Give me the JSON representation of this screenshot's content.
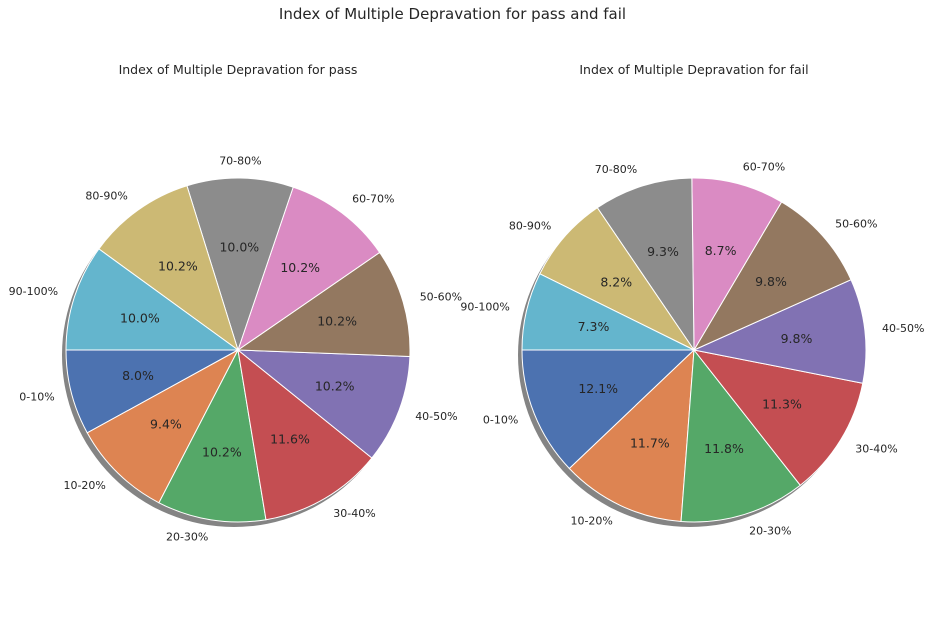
{
  "suptitle": "Index of Multiple Depravation for pass and fail",
  "colors": [
    "#4c72b0",
    "#dd8452",
    "#55a868",
    "#c44e52",
    "#8172b3",
    "#937860",
    "#da8bc3",
    "#8c8c8c",
    "#ccb974",
    "#64b5cd"
  ],
  "chart_data": [
    {
      "type": "pie",
      "title": "Index of Multiple Depravation for pass",
      "categories": [
        "0-10%",
        "10-20%",
        "20-30%",
        "30-40%",
        "40-50%",
        "50-60%",
        "60-70%",
        "70-80%",
        "80-90%",
        "90-100%"
      ],
      "values": [
        8.0,
        9.4,
        10.2,
        11.6,
        10.2,
        10.2,
        10.2,
        10.0,
        10.2,
        10.0
      ],
      "value_labels": [
        "8.0%",
        "9.4%",
        "10.2%",
        "11.6%",
        "10.2%",
        "10.2%",
        "10.2%",
        "10.0%",
        "10.2%",
        "10.0%"
      ],
      "start_angle_deg": 180,
      "direction": "counterclockwise",
      "shadow": true
    },
    {
      "type": "pie",
      "title": "Index of Multiple Depravation for fail",
      "categories": [
        "0-10%",
        "10-20%",
        "20-30%",
        "30-40%",
        "40-50%",
        "50-60%",
        "60-70%",
        "70-80%",
        "80-90%",
        "90-100%"
      ],
      "values": [
        12.1,
        11.7,
        11.8,
        11.3,
        9.8,
        9.8,
        8.7,
        9.3,
        8.2,
        7.3
      ],
      "value_labels": [
        "12.1%",
        "11.7%",
        "11.8%",
        "11.3%",
        "9.8%",
        "9.8%",
        "8.7%",
        "9.3%",
        "8.2%",
        "7.3%"
      ],
      "start_angle_deg": 180,
      "direction": "counterclockwise",
      "shadow": true
    }
  ]
}
